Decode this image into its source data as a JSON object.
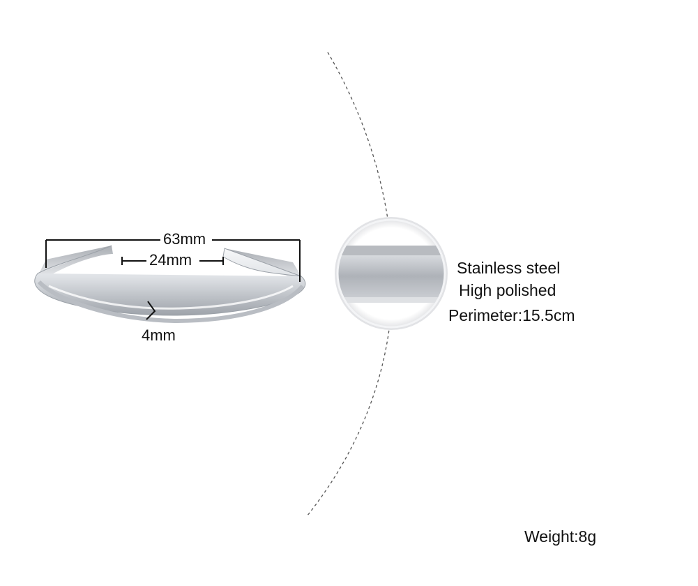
{
  "dimensions": {
    "outer_width": "63mm",
    "opening_width": "24mm",
    "band_width": "4mm"
  },
  "specs": {
    "material": "Stainless steel",
    "finish": "High polished",
    "perimeter": "Perimeter:15.5cm"
  },
  "weight": "Weight:8g",
  "colors": {
    "steel_light": "#eef0f2",
    "steel_mid": "#b8bcc2",
    "steel_dark": "#8a8f96",
    "line": "#111111"
  }
}
